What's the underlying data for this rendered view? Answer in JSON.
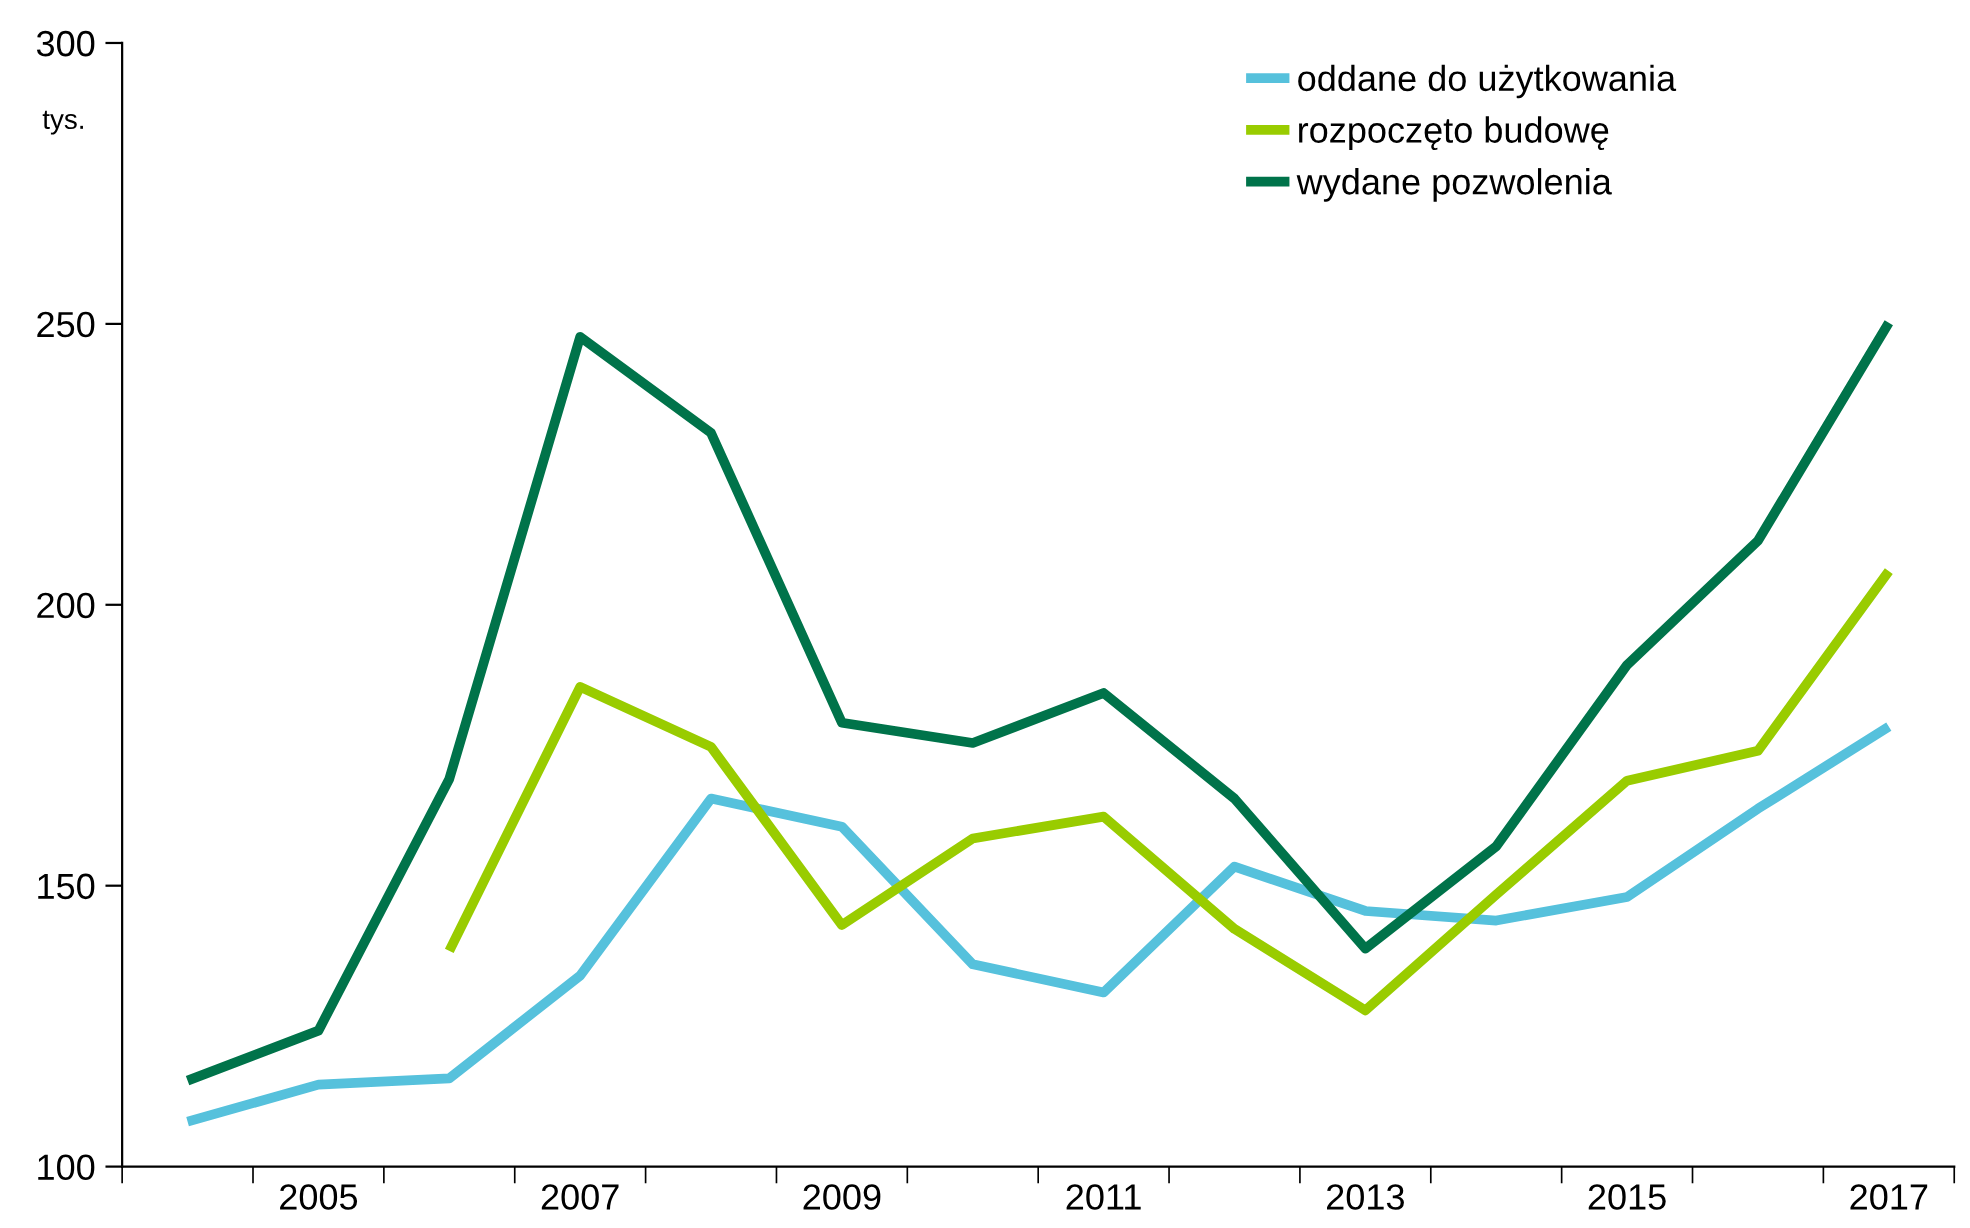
{
  "chart_data": {
    "type": "line",
    "ylabel": "tys.",
    "categories": [
      null,
      "2005",
      null,
      "2007",
      null,
      "2009",
      null,
      "2011",
      null,
      "2013",
      null,
      "2015",
      null,
      "2017"
    ],
    "ylim": [
      100,
      300
    ],
    "yticks": [
      100,
      150,
      200,
      250,
      300
    ],
    "grid": false,
    "legend": "top right",
    "marker": "none",
    "line_style": "solid",
    "series": [
      {
        "name": "oddane do użytkowania",
        "color": "#56c1dc",
        "values": [
          108,
          114.6,
          115.7,
          134,
          165.5,
          160.5,
          136,
          131,
          153.4,
          145.5,
          143.8,
          148,
          163.7,
          178.3
        ]
      },
      {
        "name": "rozpoczęto budowę",
        "color": "#99cc00",
        "values": [
          null,
          null,
          138.4,
          185.4,
          174.7,
          143,
          158.4,
          162.3,
          142.3,
          127.8,
          148.4,
          168.7,
          174,
          206
        ]
      },
      {
        "name": "wydane pozwolenia",
        "color": "#00734a",
        "values": [
          115.3,
          124.2,
          169,
          247.7,
          230.6,
          179,
          175.4,
          184.3,
          165.5,
          138.8,
          157,
          189.3,
          211.4,
          250.2
        ]
      }
    ]
  }
}
